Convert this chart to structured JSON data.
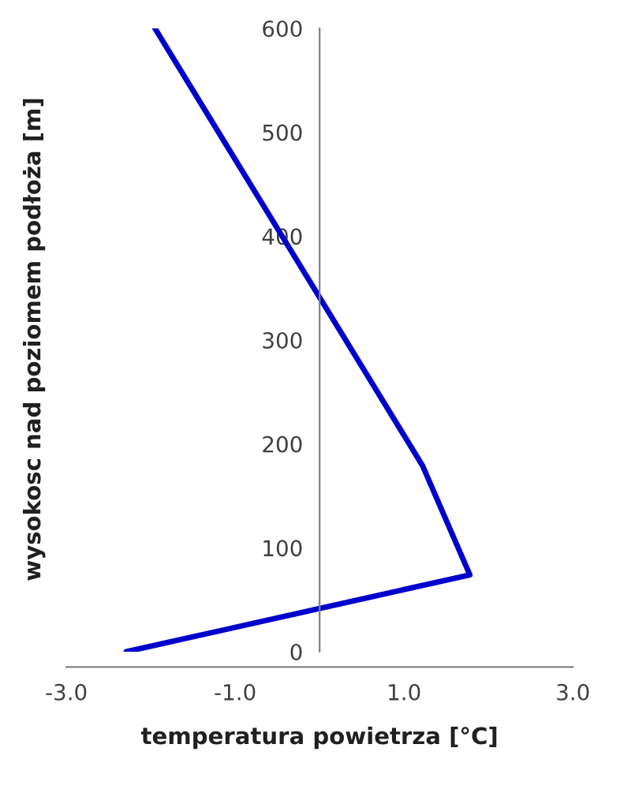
{
  "chart_data": {
    "type": "line",
    "xlabel": "temperatura powietrza [°C]",
    "ylabel": "wysokosc nad poziomem podłoża [m]",
    "x": [
      -2.29,
      1.78,
      1.22,
      -1.95
    ],
    "series": [
      {
        "color": "#0000cc",
        "values": [
          0,
          74,
          179,
          600
        ]
      }
    ],
    "xlim": [
      -3,
      3
    ],
    "xticks": [
      {
        "value": -3,
        "label": "-3.0"
      },
      {
        "value": -1,
        "label": "-1.0"
      },
      {
        "value": 1,
        "label": "1.0"
      },
      {
        "value": 3,
        "label": "3.0"
      }
    ],
    "ylim": [
      0,
      600
    ],
    "yticks": [
      0,
      100,
      200,
      300,
      400,
      500,
      600
    ],
    "grid": false,
    "legend": false,
    "marker": "none",
    "line_style": "solid"
  }
}
